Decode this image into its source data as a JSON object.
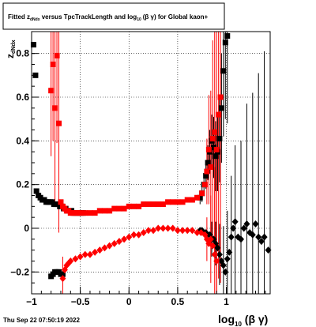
{
  "title": {
    "prefix": "Fitted  z",
    "sub": "dNdx",
    "middle": "  versus TpcTrackLength and log",
    "sub2": "10",
    "suffix": "(β  γ) for Global kaon+"
  },
  "footer": "Thu Sep 22 07:50:19 2022",
  "chart_data": {
    "type": "scatter",
    "title": "Fitted z_dNdx versus TpcTrackLength and log10(β γ) for Global kaon+",
    "xlabel": "log10(β γ)",
    "ylabel": "zdNdx",
    "xlim": [
      -1.0,
      1.45
    ],
    "ylim": [
      -0.3,
      0.9
    ],
    "xticks": [
      -1,
      -0.5,
      0,
      0.5,
      1
    ],
    "xtick_labels": [
      "−1",
      "−0.5",
      "0",
      "0.5",
      "1"
    ],
    "yticks": [
      -0.2,
      0,
      0.2,
      0.4,
      0.6,
      0.8
    ],
    "ytick_labels": [
      "−0.2",
      "0",
      "0.2",
      "0.4",
      "0.6",
      "0.8"
    ],
    "grid": true,
    "series": [
      {
        "color": "#000000",
        "marker": "square",
        "points": [
          [
            -0.98,
            0.84
          ],
          [
            -0.96,
            0.7
          ],
          [
            -0.95,
            0.17
          ],
          [
            -0.93,
            0.15
          ],
          [
            -0.91,
            0.14
          ],
          [
            -0.89,
            0.13
          ],
          [
            -0.87,
            0.13
          ],
          [
            -0.85,
            0.12
          ],
          [
            -0.83,
            0.12
          ],
          [
            -0.81,
            0.12
          ],
          [
            -0.79,
            0.12
          ],
          [
            -0.77,
            0.11
          ],
          [
            -0.75,
            0.11
          ],
          [
            -0.73,
            0.11
          ],
          [
            -0.71,
            0.1
          ],
          [
            -0.69,
            0.1
          ],
          [
            -0.67,
            0.09
          ],
          [
            -0.65,
            0.09
          ],
          [
            -0.63,
            0.08
          ],
          [
            -0.61,
            0.08
          ],
          [
            -0.59,
            0.08
          ],
          [
            -0.57,
            0.07
          ],
          [
            -0.55,
            0.07
          ],
          [
            -0.53,
            0.07
          ],
          [
            -0.51,
            0.07
          ],
          [
            -0.49,
            0.07
          ],
          [
            -0.47,
            0.07
          ],
          [
            0.73,
            0.14
          ],
          [
            0.75,
            0.16
          ],
          [
            0.77,
            0.2
          ],
          [
            0.79,
            0.24
          ],
          [
            0.81,
            0.3
          ],
          [
            0.83,
            0.35
          ],
          [
            0.85,
            0.4
          ],
          [
            0.87,
            0.37
          ],
          [
            0.89,
            0.33
          ],
          [
            0.91,
            0.35
          ],
          [
            0.93,
            0.41
          ],
          [
            0.95,
            0.55
          ],
          [
            0.97,
            0.72
          ],
          [
            0.99,
            0.85
          ],
          [
            1.01,
            0.88
          ],
          [
            -0.8,
            -0.22
          ],
          [
            -0.78,
            -0.21
          ],
          [
            -0.76,
            -0.2
          ],
          [
            -0.74,
            -0.2
          ],
          [
            -0.72,
            -0.2
          ],
          [
            -0.7,
            -0.21
          ],
          [
            -0.68,
            -0.21
          ]
        ],
        "errors": [
          [
            0.73,
            0.14,
            0.03
          ],
          [
            0.75,
            0.16,
            0.04
          ],
          [
            0.77,
            0.2,
            0.05
          ],
          [
            0.79,
            0.24,
            0.06
          ],
          [
            0.81,
            0.3,
            0.08
          ],
          [
            0.83,
            0.35,
            0.1
          ],
          [
            0.85,
            0.4,
            0.12
          ],
          [
            0.87,
            0.37,
            0.14
          ],
          [
            0.89,
            0.33,
            0.16
          ],
          [
            0.91,
            0.35,
            0.18
          ],
          [
            0.93,
            0.41,
            0.2
          ],
          [
            0.95,
            0.55,
            0.25
          ],
          [
            0.97,
            0.72,
            0.3
          ],
          [
            0.99,
            0.85,
            0.35
          ],
          [
            1.01,
            0.88,
            0.4
          ]
        ]
      },
      {
        "color": "#000000",
        "marker": "diamond",
        "points": [
          [
            0.73,
            -0.01
          ],
          [
            0.75,
            -0.01
          ],
          [
            0.77,
            -0.02
          ],
          [
            0.79,
            -0.02
          ],
          [
            0.81,
            -0.03
          ],
          [
            0.83,
            -0.03
          ],
          [
            0.85,
            -0.05
          ],
          [
            0.87,
            -0.05
          ],
          [
            0.89,
            -0.07
          ],
          [
            0.91,
            -0.09
          ],
          [
            0.93,
            -0.12
          ],
          [
            0.95,
            -0.15
          ],
          [
            0.97,
            -0.17
          ],
          [
            0.99,
            -0.2
          ],
          [
            1.01,
            -0.14
          ],
          [
            1.03,
            -0.11
          ],
          [
            1.05,
            -0.04
          ],
          [
            1.07,
            0.0
          ],
          [
            1.09,
            0.03
          ],
          [
            1.12,
            -0.04
          ],
          [
            1.15,
            -0.05
          ],
          [
            1.18,
            0.0
          ],
          [
            1.21,
            0.02
          ],
          [
            1.24,
            -0.02
          ],
          [
            1.27,
            -0.03
          ],
          [
            1.3,
            0.02
          ],
          [
            1.33,
            -0.04
          ],
          [
            1.36,
            -0.06
          ],
          [
            1.39,
            -0.04
          ],
          [
            1.43,
            -0.1
          ]
        ],
        "errors": [
          [
            0.85,
            -0.05,
            0.08
          ],
          [
            0.89,
            -0.07,
            0.1
          ],
          [
            0.93,
            -0.12,
            0.14
          ],
          [
            0.97,
            -0.17,
            0.18
          ],
          [
            1.01,
            -0.14,
            0.22
          ],
          [
            1.05,
            -0.04,
            0.28
          ],
          [
            1.09,
            0.03,
            0.35
          ],
          [
            1.15,
            -0.05,
            0.45
          ],
          [
            1.21,
            0.02,
            0.55
          ],
          [
            1.27,
            -0.03,
            0.65
          ],
          [
            1.33,
            -0.04,
            0.75
          ],
          [
            1.39,
            -0.04,
            0.85
          ]
        ]
      },
      {
        "color": "#ff0000",
        "marker": "square",
        "points": [
          [
            -0.8,
            0.63
          ],
          [
            -0.78,
            0.75
          ],
          [
            -0.76,
            0.55
          ],
          [
            -0.74,
            0.79
          ],
          [
            -0.72,
            0.48
          ],
          [
            -0.7,
            0.12
          ],
          [
            -0.68,
            0.1
          ],
          [
            -0.66,
            0.09
          ],
          [
            -0.64,
            0.08
          ],
          [
            -0.62,
            0.08
          ],
          [
            -0.6,
            0.07
          ],
          [
            -0.58,
            0.07
          ],
          [
            -0.56,
            0.07
          ],
          [
            -0.54,
            0.07
          ],
          [
            -0.52,
            0.07
          ],
          [
            -0.5,
            0.07
          ],
          [
            -0.45,
            0.07
          ],
          [
            -0.4,
            0.07
          ],
          [
            -0.35,
            0.07
          ],
          [
            -0.3,
            0.08
          ],
          [
            -0.25,
            0.08
          ],
          [
            -0.2,
            0.08
          ],
          [
            -0.15,
            0.09
          ],
          [
            -0.1,
            0.09
          ],
          [
            -0.05,
            0.09
          ],
          [
            0.0,
            0.1
          ],
          [
            0.05,
            0.1
          ],
          [
            0.1,
            0.1
          ],
          [
            0.15,
            0.11
          ],
          [
            0.2,
            0.11
          ],
          [
            0.25,
            0.11
          ],
          [
            0.3,
            0.11
          ],
          [
            0.35,
            0.11
          ],
          [
            0.4,
            0.12
          ],
          [
            0.45,
            0.12
          ],
          [
            0.5,
            0.12
          ],
          [
            0.55,
            0.12
          ],
          [
            0.6,
            0.13
          ],
          [
            0.65,
            0.13
          ],
          [
            0.7,
            0.14
          ],
          [
            0.75,
            0.16
          ],
          [
            0.78,
            0.2
          ],
          [
            0.8,
            0.26
          ],
          [
            0.82,
            0.36
          ],
          [
            0.84,
            0.28
          ],
          [
            0.86,
            0.41
          ],
          [
            0.88,
            0.44
          ],
          [
            0.9,
            0.36
          ],
          [
            0.92,
            0.52
          ],
          [
            0.94,
            0.6
          ]
        ],
        "errors": [
          [
            -0.8,
            0.63,
            0.3
          ],
          [
            -0.78,
            0.75,
            0.35
          ],
          [
            -0.76,
            0.55,
            0.45
          ],
          [
            -0.74,
            0.79,
            0.4
          ],
          [
            -0.72,
            0.48,
            0.5
          ],
          [
            0.8,
            0.26,
            0.15
          ],
          [
            0.82,
            0.36,
            0.25
          ],
          [
            0.84,
            0.28,
            0.35
          ],
          [
            0.86,
            0.41,
            0.45
          ],
          [
            0.88,
            0.44,
            0.55
          ],
          [
            0.9,
            0.36,
            0.65
          ],
          [
            0.92,
            0.52,
            0.75
          ],
          [
            0.94,
            0.6,
            0.85
          ]
        ]
      },
      {
        "color": "#ff0000",
        "marker": "diamond",
        "points": [
          [
            -0.68,
            -0.23
          ],
          [
            -0.66,
            -0.19
          ],
          [
            -0.64,
            -0.17
          ],
          [
            -0.62,
            -0.16
          ],
          [
            -0.6,
            -0.15
          ],
          [
            -0.55,
            -0.14
          ],
          [
            -0.5,
            -0.13
          ],
          [
            -0.45,
            -0.12
          ],
          [
            -0.4,
            -0.12
          ],
          [
            -0.35,
            -0.11
          ],
          [
            -0.3,
            -0.1
          ],
          [
            -0.25,
            -0.09
          ],
          [
            -0.2,
            -0.08
          ],
          [
            -0.15,
            -0.07
          ],
          [
            -0.1,
            -0.06
          ],
          [
            -0.05,
            -0.05
          ],
          [
            0.0,
            -0.04
          ],
          [
            0.05,
            -0.03
          ],
          [
            0.1,
            -0.03
          ],
          [
            0.15,
            -0.02
          ],
          [
            0.2,
            -0.01
          ],
          [
            0.25,
            -0.01
          ],
          [
            0.3,
            0.0
          ],
          [
            0.35,
            0.0
          ],
          [
            0.4,
            0.0
          ],
          [
            0.45,
            0.0
          ],
          [
            0.5,
            -0.01
          ],
          [
            0.55,
            -0.01
          ],
          [
            0.6,
            -0.01
          ],
          [
            0.65,
            -0.01
          ],
          [
            0.7,
            -0.02
          ],
          [
            0.74,
            -0.02
          ],
          [
            0.78,
            -0.03
          ],
          [
            0.8,
            -0.05
          ],
          [
            0.82,
            -0.07
          ],
          [
            0.84,
            -0.05
          ],
          [
            0.86,
            -0.08
          ],
          [
            0.88,
            -0.12
          ],
          [
            0.9,
            -0.15
          ]
        ],
        "errors": [
          [
            -0.68,
            -0.23,
            0.1
          ],
          [
            0.8,
            -0.05,
            0.1
          ],
          [
            0.84,
            -0.05,
            0.2
          ],
          [
            0.88,
            -0.12,
            0.4
          ],
          [
            0.9,
            -0.15,
            0.6
          ]
        ]
      }
    ]
  }
}
